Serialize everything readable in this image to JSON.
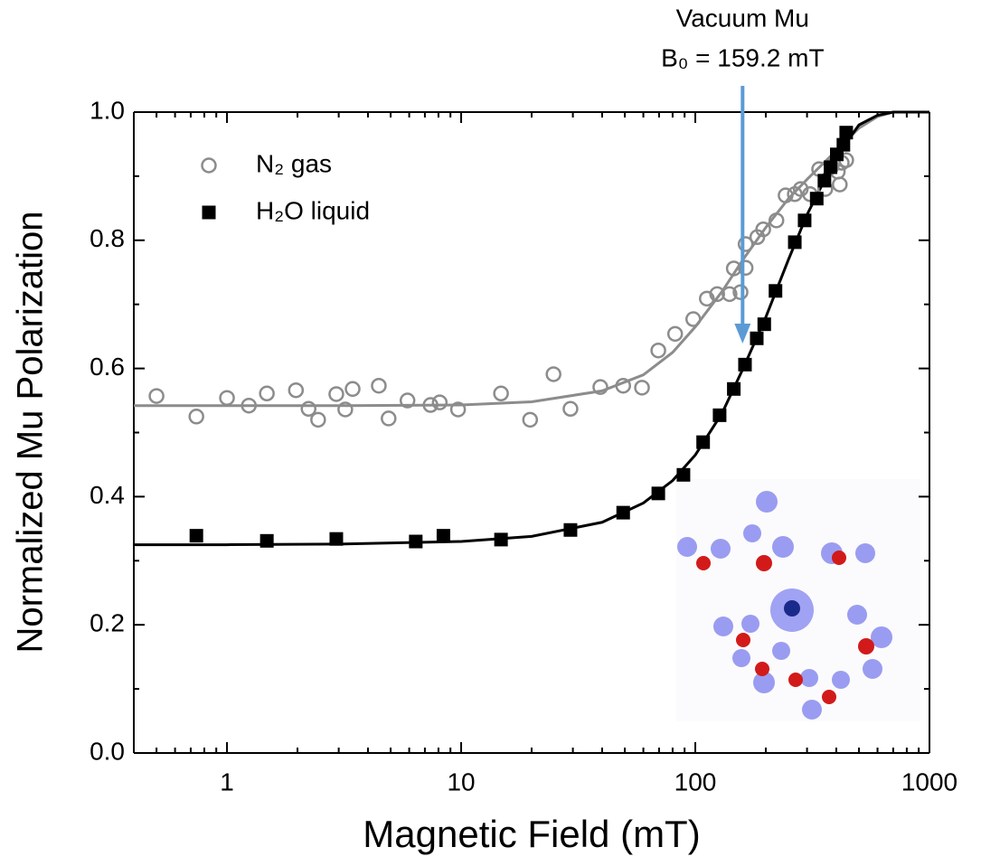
{
  "chart_data": {
    "type": "scatter",
    "xlabel": "Magnetic Field (mT)",
    "ylabel": "Normalized Mu Polarization",
    "xscale": "log",
    "xlim": [
      0.4,
      1000
    ],
    "ylim": [
      0,
      1
    ],
    "xticks": [
      1,
      10,
      100,
      1000
    ],
    "xminorticks": [
      0.5,
      0.6,
      0.7,
      0.8,
      0.9,
      2,
      3,
      4,
      5,
      6,
      7,
      8,
      9,
      20,
      30,
      40,
      50,
      60,
      70,
      80,
      90,
      200,
      300,
      400,
      500,
      600,
      700,
      800,
      900
    ],
    "yticks": [
      {
        "value": 0,
        "label": "0.0"
      },
      {
        "value": 0.2,
        "label": "0.2"
      },
      {
        "value": 0.4,
        "label": "0.4"
      },
      {
        "value": 0.6,
        "label": "0.6"
      },
      {
        "value": 0.8,
        "label": "0.8"
      },
      {
        "value": 1,
        "label": "1.0"
      }
    ],
    "yminorticks": [
      0.1,
      0.3,
      0.5,
      0.7,
      0.9
    ],
    "legend": "upper left",
    "series": [
      {
        "name": "N₂ gas",
        "color": "#8c8c8c",
        "marker": "open-circle",
        "x": [
          0.5,
          0.74,
          1.0,
          1.24,
          1.48,
          1.97,
          2.23,
          2.45,
          2.93,
          3.2,
          3.44,
          4.45,
          4.9,
          5.9,
          7.4,
          8.1,
          9.7,
          14.8,
          19.7,
          24.8,
          29.3,
          39.3,
          49.2,
          59.2,
          69.5,
          82,
          98,
          112,
          124,
          140,
          146,
          156,
          164,
          164,
          184,
          195,
          222,
          243,
          266,
          282,
          309,
          338,
          359,
          382,
          406,
          414,
          422,
          441
        ],
        "values": [
          0.557,
          0.525,
          0.554,
          0.542,
          0.561,
          0.566,
          0.537,
          0.52,
          0.56,
          0.536,
          0.568,
          0.573,
          0.522,
          0.55,
          0.543,
          0.547,
          0.536,
          0.561,
          0.52,
          0.591,
          0.537,
          0.571,
          0.573,
          0.57,
          0.628,
          0.654,
          0.677,
          0.709,
          0.716,
          0.716,
          0.756,
          0.719,
          0.757,
          0.794,
          0.805,
          0.817,
          0.831,
          0.87,
          0.872,
          0.88,
          0.872,
          0.911,
          0.88,
          0.915,
          0.907,
          0.887,
          0.921,
          0.925
        ]
      },
      {
        "name": "H₂O liquid",
        "color": "#000000",
        "marker": "filled-square",
        "x": [
          0.74,
          1.48,
          2.93,
          6.4,
          8.4,
          14.8,
          29.3,
          49.2,
          69.5,
          89,
          108,
          127,
          146,
          163,
          183,
          197,
          220,
          266,
          293,
          330,
          356,
          378,
          402,
          429,
          441
        ],
        "values": [
          0.339,
          0.331,
          0.334,
          0.33,
          0.339,
          0.333,
          0.348,
          0.375,
          0.405,
          0.434,
          0.485,
          0.527,
          0.568,
          0.606,
          0.647,
          0.669,
          0.721,
          0.797,
          0.831,
          0.865,
          0.893,
          0.914,
          0.934,
          0.949,
          0.968
        ]
      }
    ],
    "fits": [
      {
        "color": "#8c8c8c",
        "x": [
          0.4,
          1,
          3,
          10,
          20,
          40,
          60,
          80,
          100,
          130,
          160,
          200,
          250,
          300,
          400,
          500,
          600,
          700,
          1000
        ],
        "values": [
          0.542,
          0.542,
          0.542,
          0.543,
          0.548,
          0.565,
          0.59,
          0.625,
          0.665,
          0.72,
          0.77,
          0.82,
          0.865,
          0.895,
          0.94,
          0.975,
          0.993,
          1.0,
          1.0
        ]
      },
      {
        "color": "#000000",
        "x": [
          0.4,
          1,
          3,
          10,
          20,
          40,
          60,
          80,
          100,
          130,
          160,
          200,
          250,
          300,
          400,
          500,
          600,
          700,
          1000
        ],
        "values": [
          0.325,
          0.325,
          0.326,
          0.33,
          0.338,
          0.36,
          0.39,
          0.425,
          0.465,
          0.53,
          0.6,
          0.68,
          0.77,
          0.84,
          0.93,
          0.98,
          0.995,
          1.0,
          1.0
        ]
      }
    ],
    "annotation": {
      "title": "Vacuum Mu",
      "text": "B₀ = 159.2 mT",
      "x": 159.2,
      "color": "#5b9bd5"
    }
  }
}
